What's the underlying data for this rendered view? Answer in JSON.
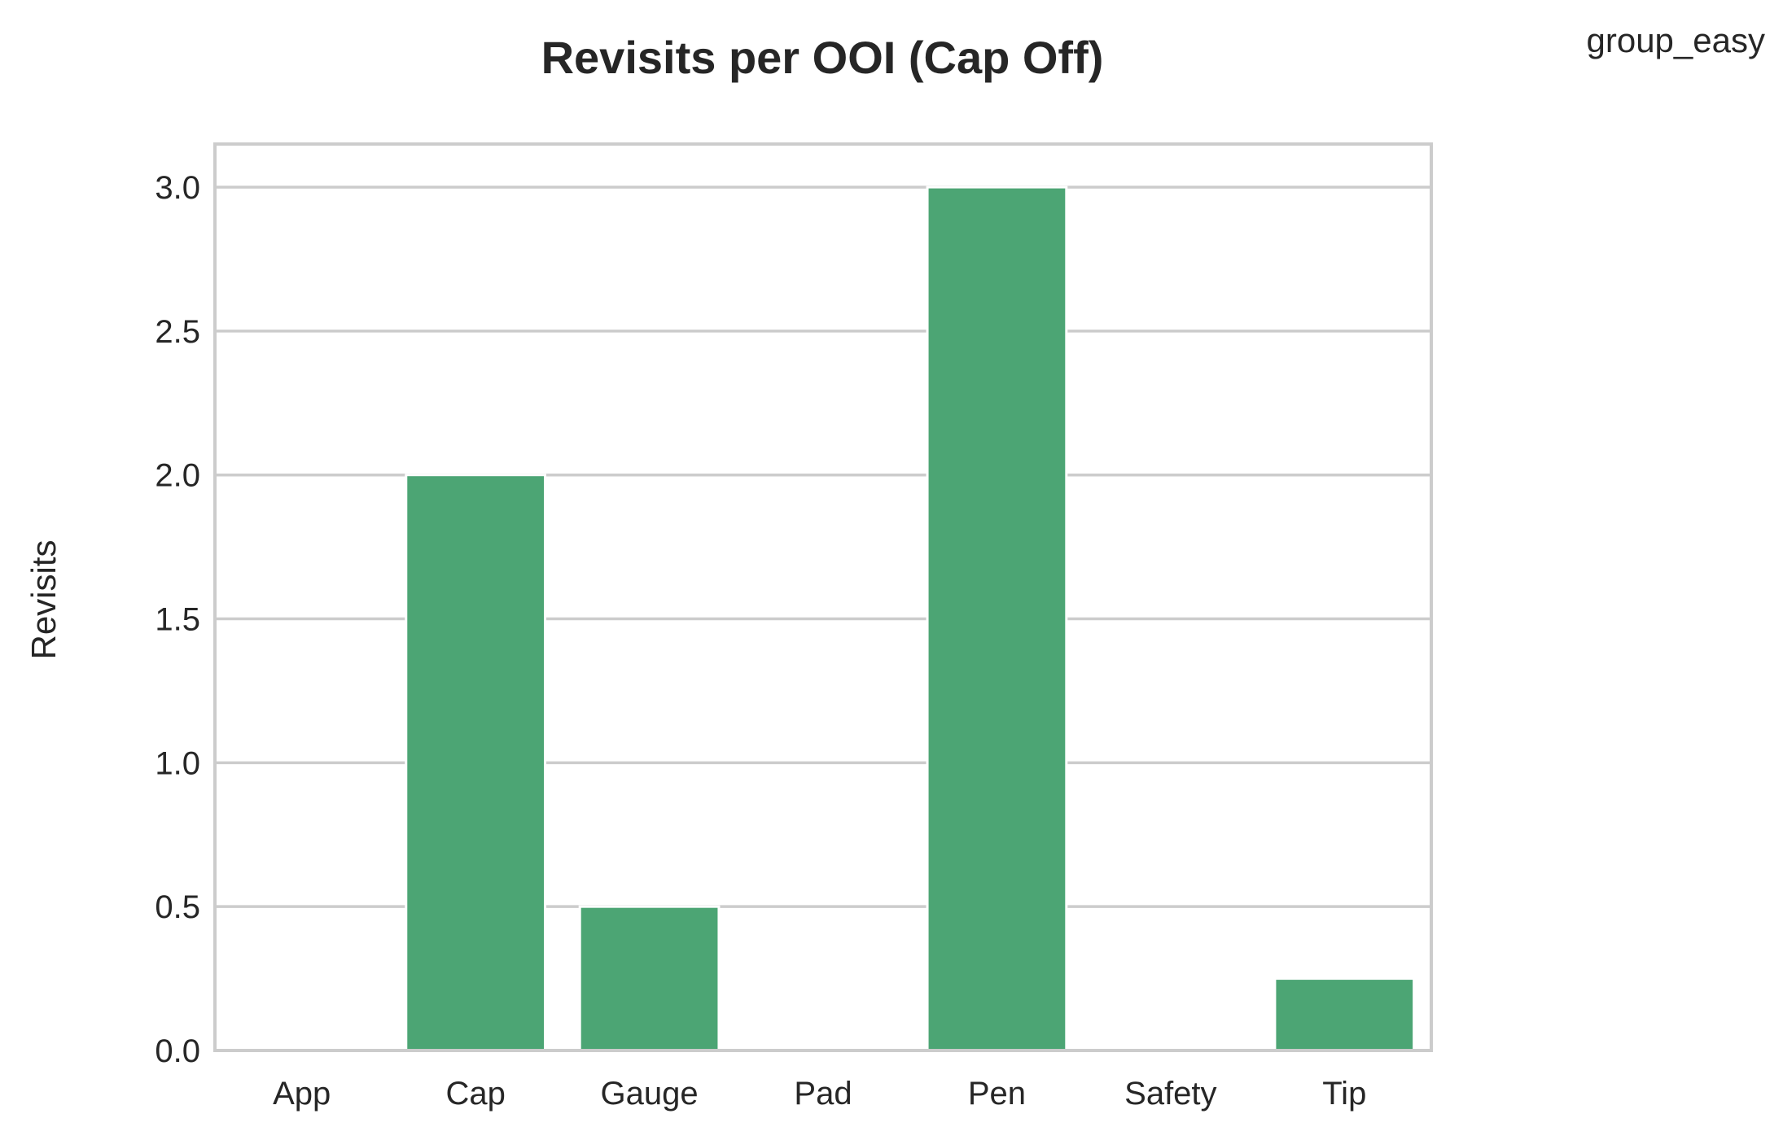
{
  "chart_data": {
    "type": "bar",
    "title": "Revisits per OOI (Cap Off)",
    "xlabel": "",
    "ylabel": "Revisits",
    "legend_label": "group_easy",
    "legend_position": "top-right",
    "categories": [
      "App",
      "Cap",
      "Gauge",
      "Pad",
      "Pen",
      "Safety",
      "Tip"
    ],
    "values": [
      0,
      2,
      0.5,
      0,
      3,
      0,
      0.25
    ],
    "ylim": [
      0,
      3.15
    ],
    "yticks": [
      "0.0",
      "0.5",
      "1.0",
      "1.5",
      "2.0",
      "2.5",
      "3.0"
    ],
    "grid": true,
    "bar_color": "#4ca574",
    "grid_color": "#cccccc",
    "frame_color": "#cccccc"
  }
}
